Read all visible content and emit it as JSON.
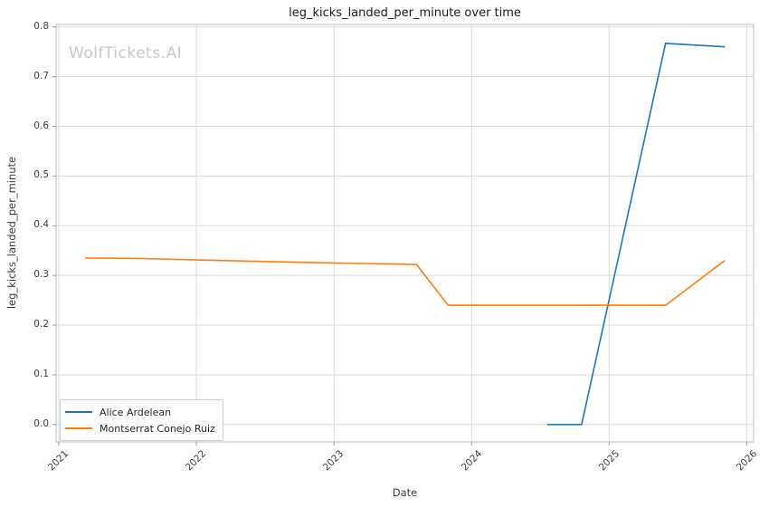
{
  "watermark": "WolfTickets.AI",
  "chart_data": {
    "type": "line",
    "title": "leg_kicks_landed_per_minute over time",
    "xlabel": "Date",
    "ylabel": "leg_kicks_landed_per_minute",
    "xlim": [
      2020.98,
      2026.05
    ],
    "ylim": [
      -0.035,
      0.805
    ],
    "xticks": [
      2021,
      2022,
      2023,
      2024,
      2025,
      2026
    ],
    "yticks": [
      0.0,
      0.1,
      0.2,
      0.3,
      0.4,
      0.5,
      0.6,
      0.7,
      0.8
    ],
    "grid": true,
    "legend_position": "lower left",
    "colors": {
      "grid": "#d9d9d9",
      "spine": "#bfbfbf",
      "tick": "#9a9a9a"
    },
    "series": [
      {
        "name": "Alice Ardelean",
        "color": "#1f77b4",
        "points": [
          [
            2024.55,
            0.0
          ],
          [
            2024.8,
            0.0
          ],
          [
            2025.41,
            0.767
          ],
          [
            2025.84,
            0.76
          ]
        ]
      },
      {
        "name": "Montserrat Conejo Ruiz",
        "color": "#ff7f0e",
        "points": [
          [
            2021.19,
            0.335
          ],
          [
            2021.6,
            0.334
          ],
          [
            2022.0,
            0.331
          ],
          [
            2022.5,
            0.328
          ],
          [
            2023.0,
            0.325
          ],
          [
            2023.6,
            0.322
          ],
          [
            2023.83,
            0.24
          ],
          [
            2024.55,
            0.24
          ],
          [
            2025.41,
            0.24
          ],
          [
            2025.84,
            0.33
          ]
        ]
      }
    ]
  }
}
